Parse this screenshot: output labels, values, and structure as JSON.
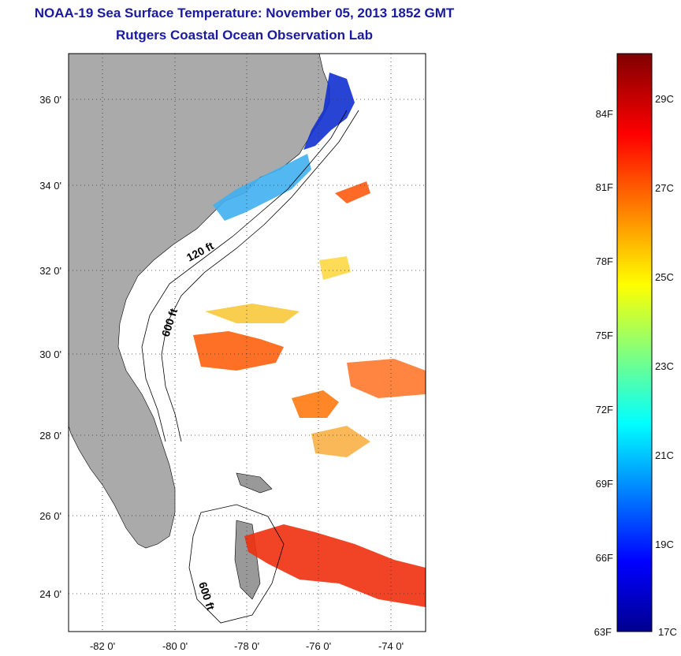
{
  "title": {
    "line1": "NOAA-19 Sea Surface Temperature:  November 05, 2013 1852 GMT",
    "line2": "Rutgers Coastal Ocean Observation Lab"
  },
  "map": {
    "lat_ticks": [
      "36 0'",
      "34 0'",
      "32 0'",
      "30 0'",
      "28 0'",
      "26 0'",
      "24 0'"
    ],
    "lon_ticks": [
      "-82 0'",
      "-80 0'",
      "-78 0'",
      "-76 0'",
      "-74 0'"
    ],
    "lat_values": [
      36,
      34,
      32,
      30,
      28,
      26,
      24
    ],
    "lon_values": [
      -82,
      -80,
      -78,
      -76,
      -74
    ],
    "lat_range": [
      23,
      37
    ],
    "lon_range": [
      -83,
      -73
    ],
    "isobaths": [
      "120 ft",
      "600 ft",
      "600 ft"
    ],
    "land_color": "#aaaaaa"
  },
  "colorbar": {
    "fahrenheit": [
      "84F",
      "81F",
      "78F",
      "75F",
      "72F",
      "69F",
      "66F",
      "63F"
    ],
    "celsius": [
      "29C",
      "27C",
      "25C",
      "23C",
      "21C",
      "19C",
      "17C"
    ],
    "range_c": [
      17,
      30
    ]
  }
}
